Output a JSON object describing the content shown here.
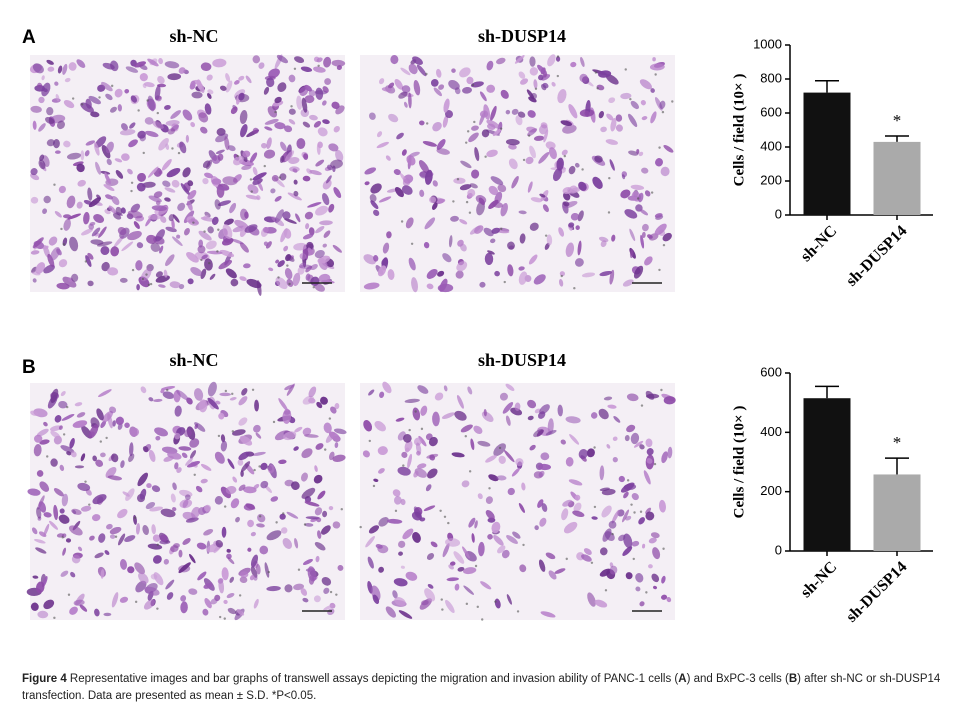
{
  "panels": [
    {
      "label": "A",
      "image_titles": [
        "sh-NC",
        "sh-DUSP14"
      ]
    },
    {
      "label": "B",
      "image_titles": [
        "sh-NC",
        "sh-DUSP14"
      ]
    }
  ],
  "chart_data": [
    {
      "type": "bar",
      "ylabel": "Cells / field (10× )",
      "categories": [
        "sh-NC",
        "sh-DUSP14"
      ],
      "values": [
        720,
        430
      ],
      "errors": [
        70,
        35
      ],
      "colors": [
        "#111111",
        "#aaaaaa"
      ],
      "ylim": [
        0,
        1000
      ],
      "yticks": [
        0,
        200,
        400,
        600,
        800,
        1000
      ],
      "annotation": "*"
    },
    {
      "type": "bar",
      "ylabel": "Cells / field (10× )",
      "categories": [
        "sh-NC",
        "sh-DUSP14"
      ],
      "values": [
        515,
        258
      ],
      "errors": [
        40,
        55
      ],
      "colors": [
        "#111111",
        "#aaaaaa"
      ],
      "ylim": [
        0,
        600
      ],
      "yticks": [
        0,
        200,
        400,
        600
      ],
      "annotation": "*"
    }
  ],
  "caption": [
    "Figure 4",
    " Representative images and bar graphs of transwell assays depicting the migration and invasion ability of PANC-1 cells (",
    "A",
    ") and BxPC-3 cells (",
    "B",
    ") after sh-NC or sh-DUSP14 transfection. Data are presented as mean ± S.D. *P<0.05."
  ]
}
